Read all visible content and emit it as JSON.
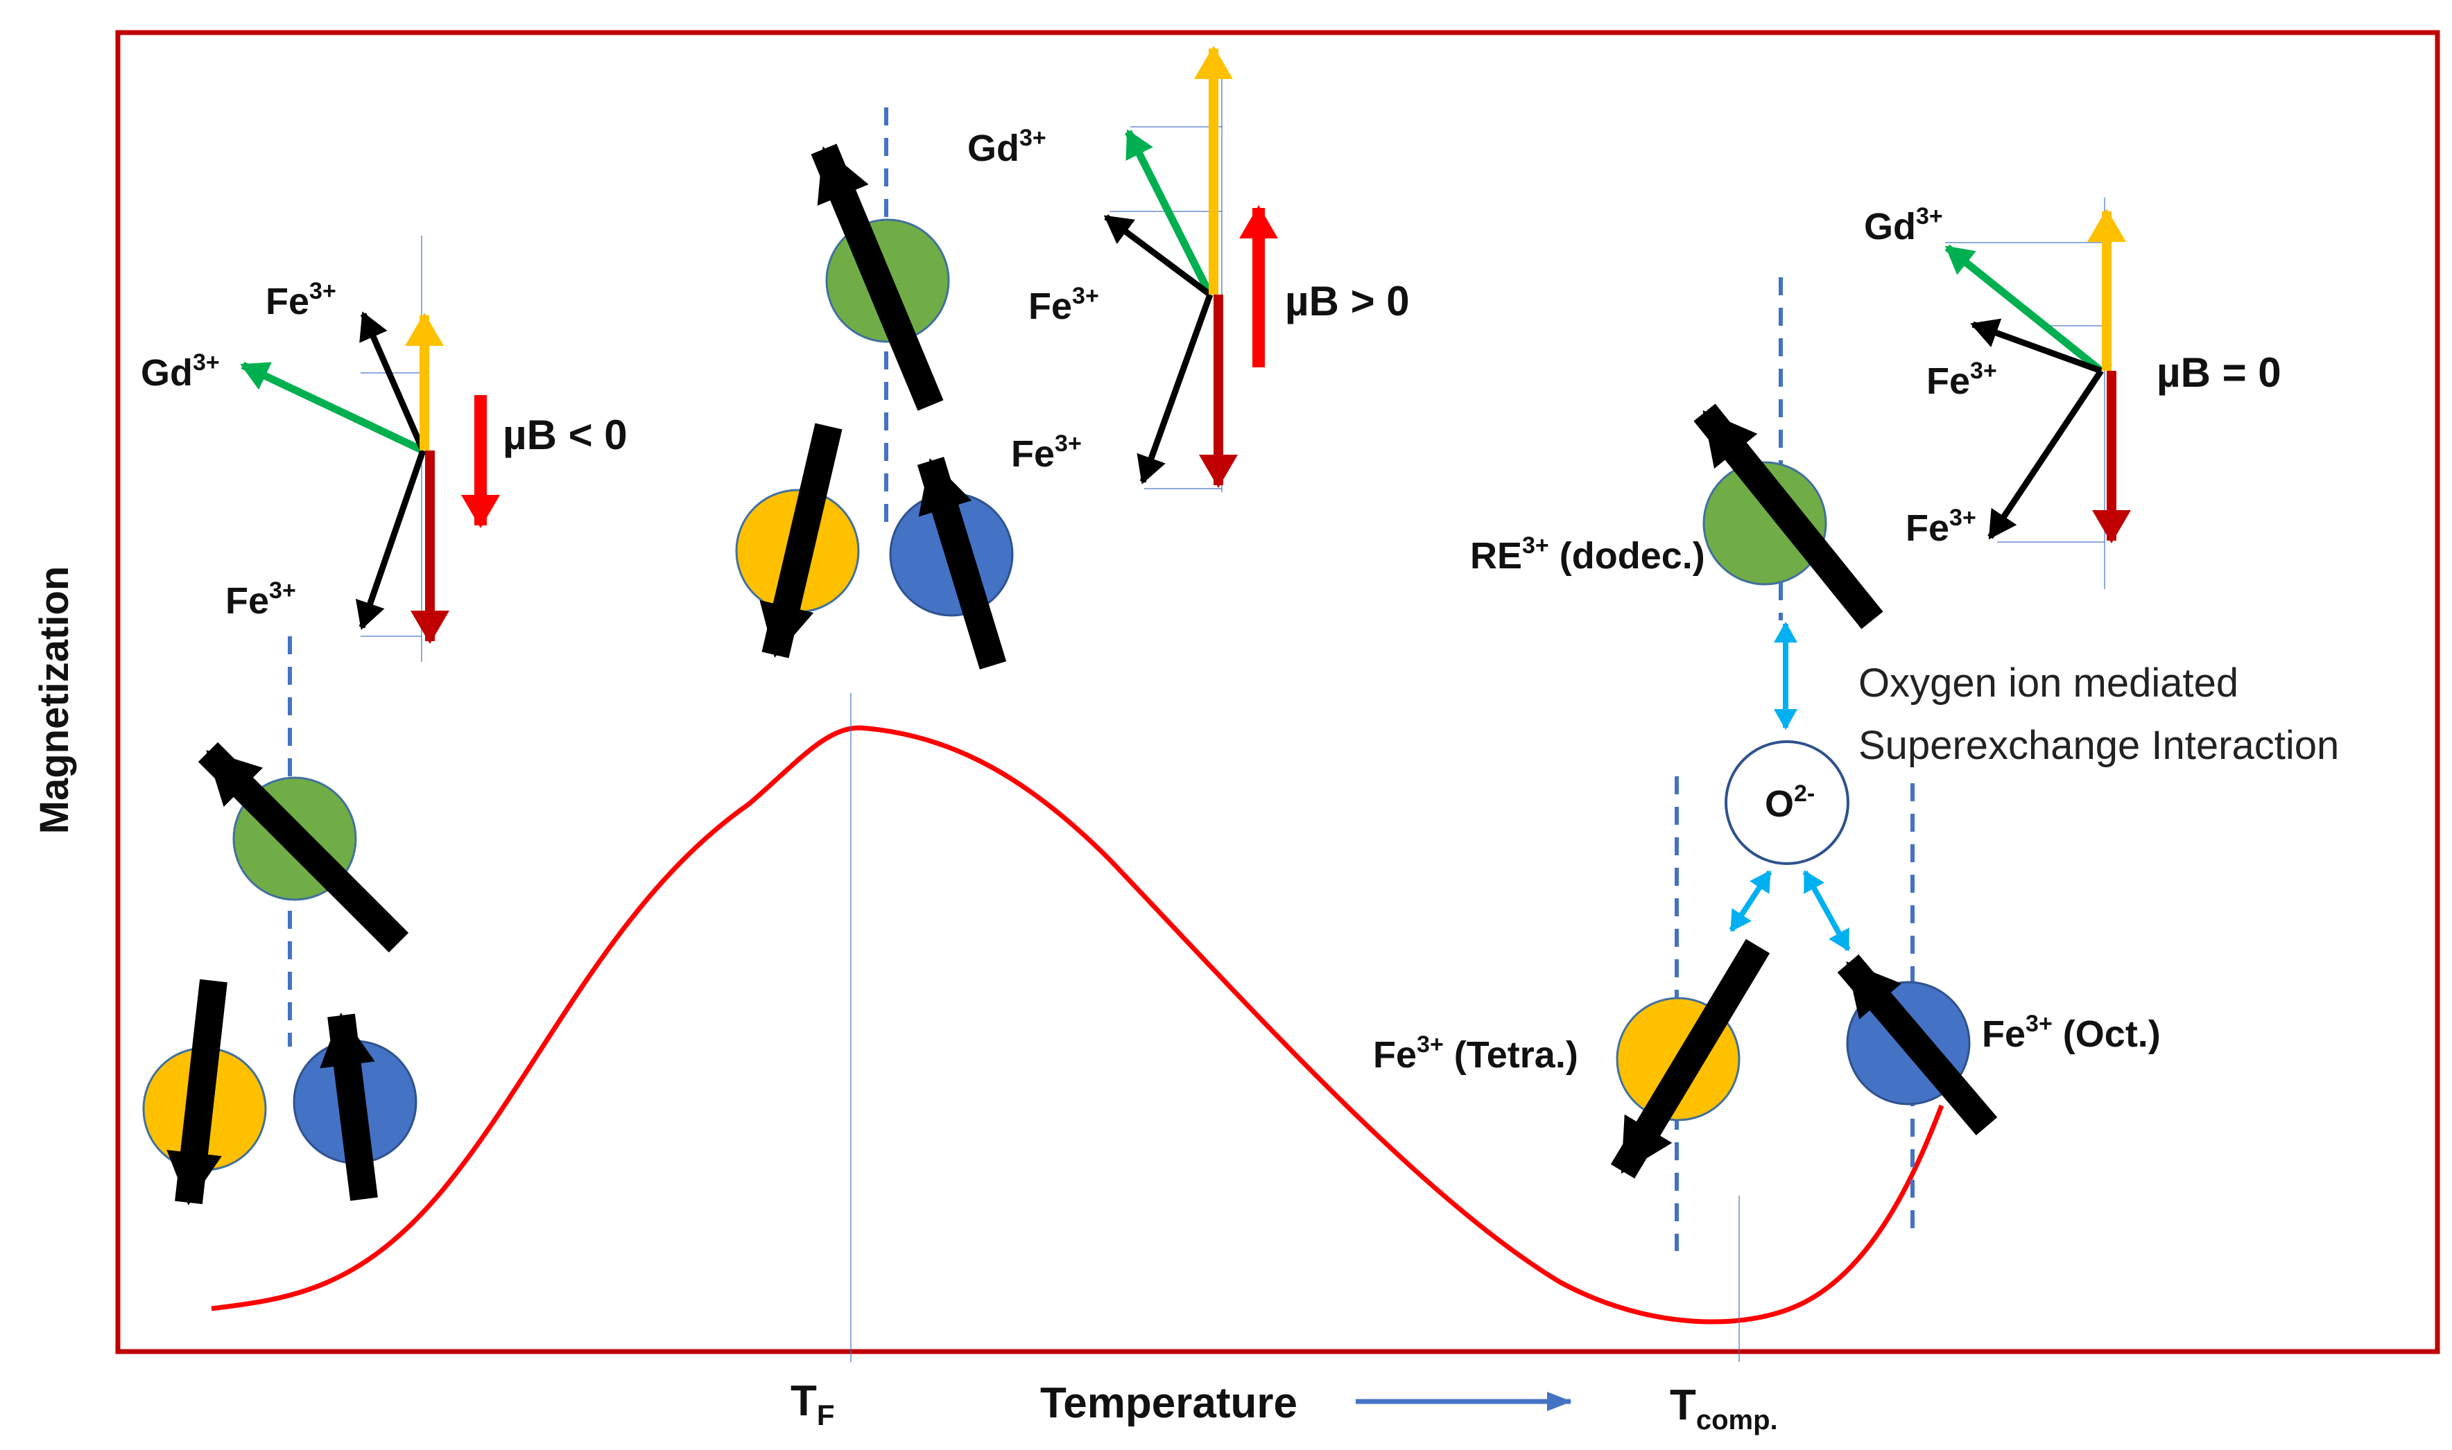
{
  "axes": {
    "ylabel": "Magnetization",
    "xlabel": "Temperature",
    "tf": {
      "base": "T",
      "sub": "F"
    },
    "tcomp": {
      "base": "T",
      "sub": "comp."
    }
  },
  "colors": {
    "frame": "#c00000",
    "curve": "#ff0000",
    "gd_vec": "#00b050",
    "yellow_vec": "#ffc000",
    "darkred_vec": "#c00000",
    "red_arrow": "#ff0000",
    "fe_vec": "#000000",
    "guide": "#4472c4",
    "green_ion": "#70ad47",
    "yellow_ion": "#ffc000",
    "blue_ion": "#4472c4",
    "light_blue_arrow": "#00b0f0"
  },
  "vector_diagrams": [
    {
      "id": "low",
      "fe_top": "Fe",
      "gd": "Gd",
      "fe_bottom": "Fe",
      "sup": "3+",
      "mu_b": "µB < 0"
    },
    {
      "id": "tf",
      "fe_top": "Fe",
      "gd": "Gd",
      "fe_bottom": "Fe",
      "sup": "3+",
      "mu_b": "µB > 0"
    },
    {
      "id": "comp",
      "fe_top": "Fe",
      "gd": "Gd",
      "fe_bottom": "Fe",
      "sup": "3+",
      "mu_b": "µB = 0"
    }
  ],
  "ions": {
    "re": {
      "base": "RE",
      "sup": "3+",
      "suffix": " (dodec.)"
    },
    "oxygen": {
      "base": "O",
      "sup": "2-"
    },
    "fe_tetra": {
      "base": "Fe",
      "sup": "3+",
      "suffix": " (Tetra.)"
    },
    "fe_oct": {
      "base": "Fe",
      "sup": "3+",
      "suffix": " (Oct.)"
    }
  },
  "note": {
    "line1": "Oxygen ion mediated",
    "line2": "Superexchange Interaction"
  }
}
